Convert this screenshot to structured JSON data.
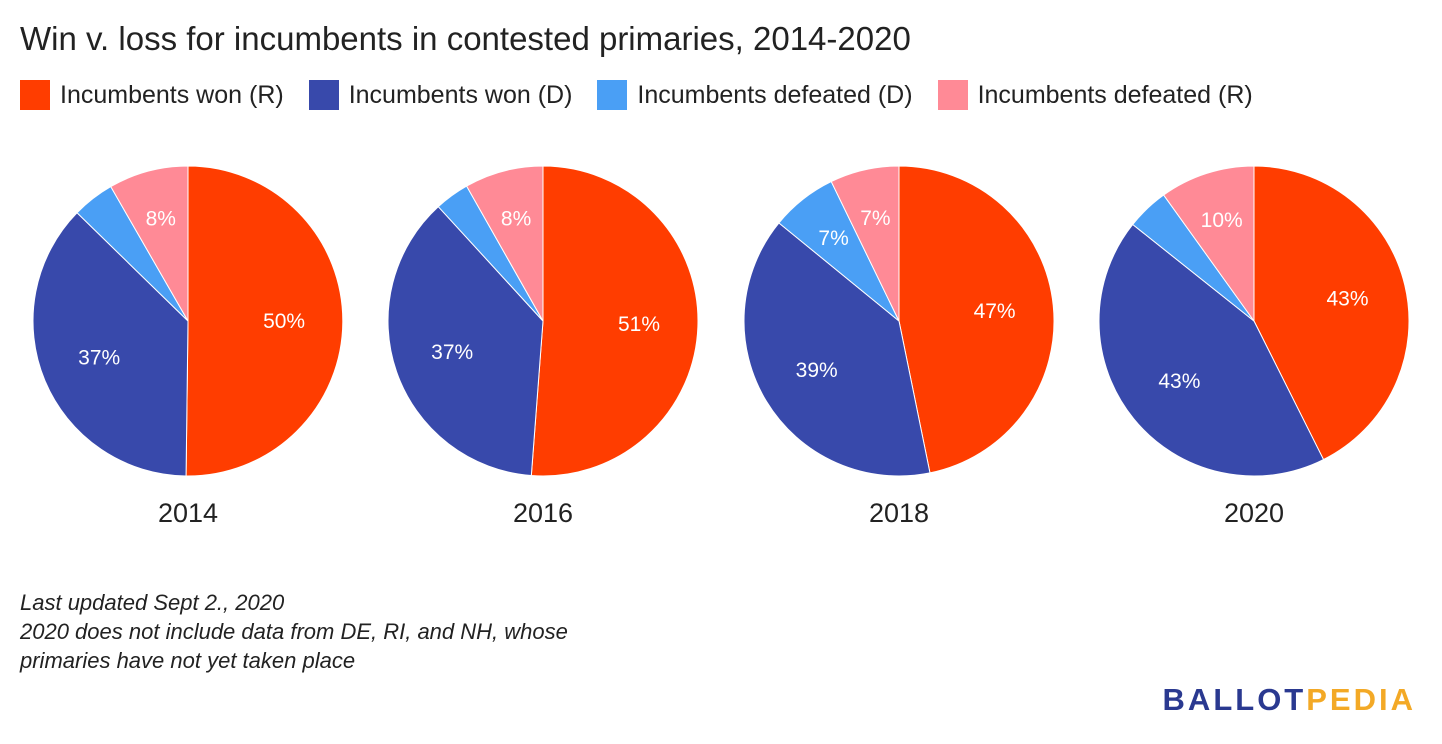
{
  "title": "Win v. loss for incumbents in contested primaries, 2014-2020",
  "colors": {
    "won_r": "#ff3d00",
    "won_d": "#3849ab",
    "defeated_d": "#4a9ff5",
    "defeated_r": "#ff8a96"
  },
  "legend": [
    {
      "label": "Incumbents won (R)",
      "color": "#ff3d00"
    },
    {
      "label": "Incumbents won (D)",
      "color": "#3849ab"
    },
    {
      "label": "Incumbents defeated (D)",
      "color": "#4a9ff5"
    },
    {
      "label": "Incumbents defeated (R)",
      "color": "#ff8a96"
    }
  ],
  "chart_data": [
    {
      "type": "pie",
      "title": "2014",
      "categories": [
        "Incumbents won (R)",
        "Incumbents won (D)",
        "Incumbents defeated (D)",
        "Incumbents defeated (R)"
      ],
      "values": [
        50.2,
        37.1,
        4.4,
        8.3
      ],
      "labels": [
        "50%",
        "37%",
        "",
        "8%"
      ]
    },
    {
      "type": "pie",
      "title": "2016",
      "categories": [
        "Incumbents won (R)",
        "Incumbents won (D)",
        "Incumbents defeated (D)",
        "Incumbents defeated (R)"
      ],
      "values": [
        51.2,
        37.0,
        3.6,
        8.2
      ],
      "labels": [
        "51%",
        "37%",
        "",
        "8%"
      ]
    },
    {
      "type": "pie",
      "title": "2018",
      "categories": [
        "Incumbents won (R)",
        "Incumbents won (D)",
        "Incumbents defeated (D)",
        "Incumbents defeated (R)"
      ],
      "values": [
        46.8,
        39.1,
        6.9,
        7.2
      ],
      "labels": [
        "47%",
        "39%",
        "7%",
        "7%"
      ]
    },
    {
      "type": "pie",
      "title": "2020",
      "categories": [
        "Incumbents won (R)",
        "Incumbents won (D)",
        "Incumbents defeated (D)",
        "Incumbents defeated (R)"
      ],
      "values": [
        42.6,
        43.1,
        4.4,
        9.9
      ],
      "labels": [
        "43%",
        "43%",
        "",
        "10%"
      ]
    }
  ],
  "notes": [
    "Last updated Sept 2., 2020",
    "2020 does not include data from DE, RI, and NH, whose",
    "primaries have not yet taken place"
  ],
  "logo": {
    "part1": "BALLOT",
    "part2": "PEDIA",
    "color1": "#2a3990",
    "color2": "#f3a926"
  }
}
